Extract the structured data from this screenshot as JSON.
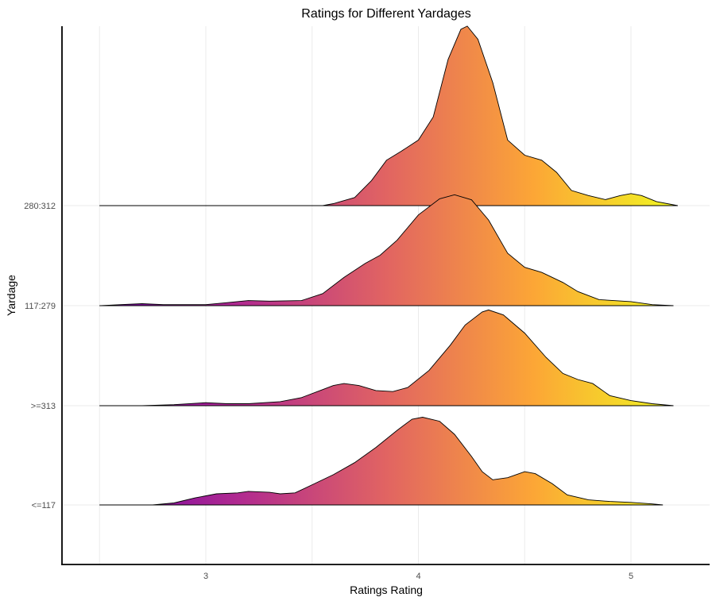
{
  "chart_data": {
    "type": "ridgeline",
    "title": "Ratings for Different Yardages",
    "xlabel": "Ratings Rating",
    "ylabel": "Yardage",
    "xlim": [
      2.45,
      5.25
    ],
    "x_ticks": [
      3,
      4,
      5
    ],
    "x_tick_labels": [
      "3",
      "4",
      "5"
    ],
    "grid": true,
    "fill": "gradient by rating (plasma: purple to yellow)",
    "gradient_colors": [
      "#6a00a8",
      "#b12a90",
      "#e16462",
      "#fca636",
      "#f0f921"
    ],
    "categories": [
      "<=117",
      ">=313",
      "117:279",
      "280:312"
    ],
    "series": [
      {
        "name": "<=117",
        "points": [
          [
            2.5,
            0
          ],
          [
            2.75,
            0
          ],
          [
            2.85,
            0.02
          ],
          [
            2.95,
            0.07
          ],
          [
            3.05,
            0.11
          ],
          [
            3.15,
            0.12
          ],
          [
            3.2,
            0.135
          ],
          [
            3.3,
            0.125
          ],
          [
            3.35,
            0.11
          ],
          [
            3.42,
            0.12
          ],
          [
            3.5,
            0.2
          ],
          [
            3.6,
            0.3
          ],
          [
            3.7,
            0.42
          ],
          [
            3.8,
            0.57
          ],
          [
            3.9,
            0.74
          ],
          [
            3.97,
            0.85
          ],
          [
            4.02,
            0.87
          ],
          [
            4.1,
            0.83
          ],
          [
            4.17,
            0.7
          ],
          [
            4.25,
            0.48
          ],
          [
            4.3,
            0.33
          ],
          [
            4.35,
            0.25
          ],
          [
            4.42,
            0.27
          ],
          [
            4.5,
            0.33
          ],
          [
            4.55,
            0.31
          ],
          [
            4.63,
            0.21
          ],
          [
            4.7,
            0.1
          ],
          [
            4.8,
            0.05
          ],
          [
            4.9,
            0.035
          ],
          [
            5.0,
            0.025
          ],
          [
            5.1,
            0.01
          ],
          [
            5.15,
            0
          ]
        ]
      },
      {
        "name": ">=313",
        "points": [
          [
            2.5,
            0
          ],
          [
            2.7,
            0
          ],
          [
            2.85,
            0.01
          ],
          [
            3.0,
            0.03
          ],
          [
            3.1,
            0.02
          ],
          [
            3.2,
            0.02
          ],
          [
            3.35,
            0.04
          ],
          [
            3.45,
            0.08
          ],
          [
            3.55,
            0.16
          ],
          [
            3.6,
            0.2
          ],
          [
            3.65,
            0.22
          ],
          [
            3.72,
            0.2
          ],
          [
            3.8,
            0.15
          ],
          [
            3.88,
            0.14
          ],
          [
            3.95,
            0.18
          ],
          [
            4.05,
            0.35
          ],
          [
            4.15,
            0.6
          ],
          [
            4.22,
            0.8
          ],
          [
            4.3,
            0.93
          ],
          [
            4.33,
            0.95
          ],
          [
            4.4,
            0.9
          ],
          [
            4.5,
            0.72
          ],
          [
            4.6,
            0.48
          ],
          [
            4.68,
            0.32
          ],
          [
            4.75,
            0.26
          ],
          [
            4.82,
            0.22
          ],
          [
            4.9,
            0.1
          ],
          [
            5.0,
            0.05
          ],
          [
            5.1,
            0.02
          ],
          [
            5.2,
            0
          ]
        ]
      },
      {
        "name": "117:279",
        "points": [
          [
            2.5,
            0
          ],
          [
            2.6,
            0.01
          ],
          [
            2.7,
            0.02
          ],
          [
            2.8,
            0.01
          ],
          [
            2.9,
            0.01
          ],
          [
            3.0,
            0.01
          ],
          [
            3.1,
            0.03
          ],
          [
            3.2,
            0.05
          ],
          [
            3.3,
            0.045
          ],
          [
            3.45,
            0.05
          ],
          [
            3.55,
            0.12
          ],
          [
            3.65,
            0.28
          ],
          [
            3.75,
            0.42
          ],
          [
            3.82,
            0.5
          ],
          [
            3.9,
            0.65
          ],
          [
            4.0,
            0.9
          ],
          [
            4.1,
            1.06
          ],
          [
            4.17,
            1.1
          ],
          [
            4.25,
            1.05
          ],
          [
            4.33,
            0.85
          ],
          [
            4.42,
            0.52
          ],
          [
            4.5,
            0.38
          ],
          [
            4.58,
            0.33
          ],
          [
            4.68,
            0.23
          ],
          [
            4.75,
            0.14
          ],
          [
            4.85,
            0.06
          ],
          [
            5.0,
            0.04
          ],
          [
            5.1,
            0.01
          ],
          [
            5.2,
            0
          ]
        ]
      },
      {
        "name": "280:312",
        "points": [
          [
            2.5,
            0
          ],
          [
            3.55,
            0
          ],
          [
            3.6,
            0.02
          ],
          [
            3.7,
            0.08
          ],
          [
            3.78,
            0.25
          ],
          [
            3.85,
            0.45
          ],
          [
            3.92,
            0.54
          ],
          [
            4.0,
            0.65
          ],
          [
            4.07,
            0.88
          ],
          [
            4.14,
            1.45
          ],
          [
            4.2,
            1.75
          ],
          [
            4.23,
            1.78
          ],
          [
            4.28,
            1.65
          ],
          [
            4.35,
            1.22
          ],
          [
            4.42,
            0.65
          ],
          [
            4.5,
            0.5
          ],
          [
            4.58,
            0.45
          ],
          [
            4.65,
            0.33
          ],
          [
            4.72,
            0.15
          ],
          [
            4.8,
            0.1
          ],
          [
            4.88,
            0.06
          ],
          [
            4.95,
            0.1
          ],
          [
            5.0,
            0.12
          ],
          [
            5.05,
            0.1
          ],
          [
            5.12,
            0.04
          ],
          [
            5.22,
            0
          ]
        ]
      }
    ]
  }
}
